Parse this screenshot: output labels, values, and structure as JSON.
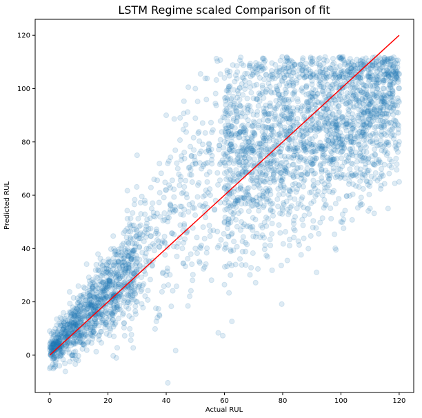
{
  "chart_data": {
    "type": "scatter",
    "title": "LSTM Regime scaled Comparison of fit",
    "xlabel": "Actual RUL",
    "ylabel": "Predicted RUL",
    "xlim": [
      -5,
      125
    ],
    "ylim": [
      -14,
      126
    ],
    "xticks": [
      0,
      20,
      40,
      60,
      80,
      100,
      120
    ],
    "yticks": [
      0,
      20,
      40,
      60,
      80,
      100,
      120
    ],
    "grid": false,
    "series": [
      {
        "kind": "scatter",
        "color": "#1f77b4",
        "alpha": 0.15,
        "point_count_approx": 9000,
        "trend_description": "Predicted RUL tracks actual RUL closely below 20, widens in spread from 20 to 80, and saturates around 85-105 for actual RUL above 90",
        "sample_points": [
          [
            0,
            2
          ],
          [
            0,
            -5
          ],
          [
            0,
            9
          ],
          [
            2,
            5
          ],
          [
            5,
            8
          ],
          [
            8,
            12
          ],
          [
            10,
            15
          ],
          [
            12,
            18
          ],
          [
            15,
            22
          ],
          [
            18,
            25
          ],
          [
            20,
            28
          ],
          [
            25,
            38
          ],
          [
            30,
            45
          ],
          [
            35,
            55
          ],
          [
            40,
            62
          ],
          [
            45,
            67
          ],
          [
            50,
            72
          ],
          [
            55,
            76
          ],
          [
            60,
            80
          ],
          [
            65,
            83
          ],
          [
            70,
            86
          ],
          [
            75,
            88
          ],
          [
            80,
            90
          ],
          [
            85,
            92
          ],
          [
            90,
            94
          ],
          [
            95,
            95
          ],
          [
            100,
            96
          ],
          [
            105,
            96
          ],
          [
            110,
            96
          ],
          [
            115,
            95
          ],
          [
            120,
            95
          ],
          [
            30,
            20
          ],
          [
            40,
            30
          ],
          [
            50,
            40
          ],
          [
            60,
            50
          ],
          [
            70,
            58
          ],
          [
            80,
            66
          ],
          [
            90,
            72
          ],
          [
            100,
            78
          ],
          [
            110,
            80
          ],
          [
            120,
            80
          ],
          [
            30,
            75
          ],
          [
            40,
            90
          ],
          [
            50,
            100
          ],
          [
            60,
            104
          ],
          [
            70,
            106
          ],
          [
            120,
            65
          ],
          [
            110,
            55
          ],
          [
            100,
            50
          ]
        ]
      },
      {
        "kind": "line",
        "color": "#ff0000",
        "name": "",
        "x": [
          0,
          120
        ],
        "y": [
          0,
          120
        ]
      }
    ]
  }
}
